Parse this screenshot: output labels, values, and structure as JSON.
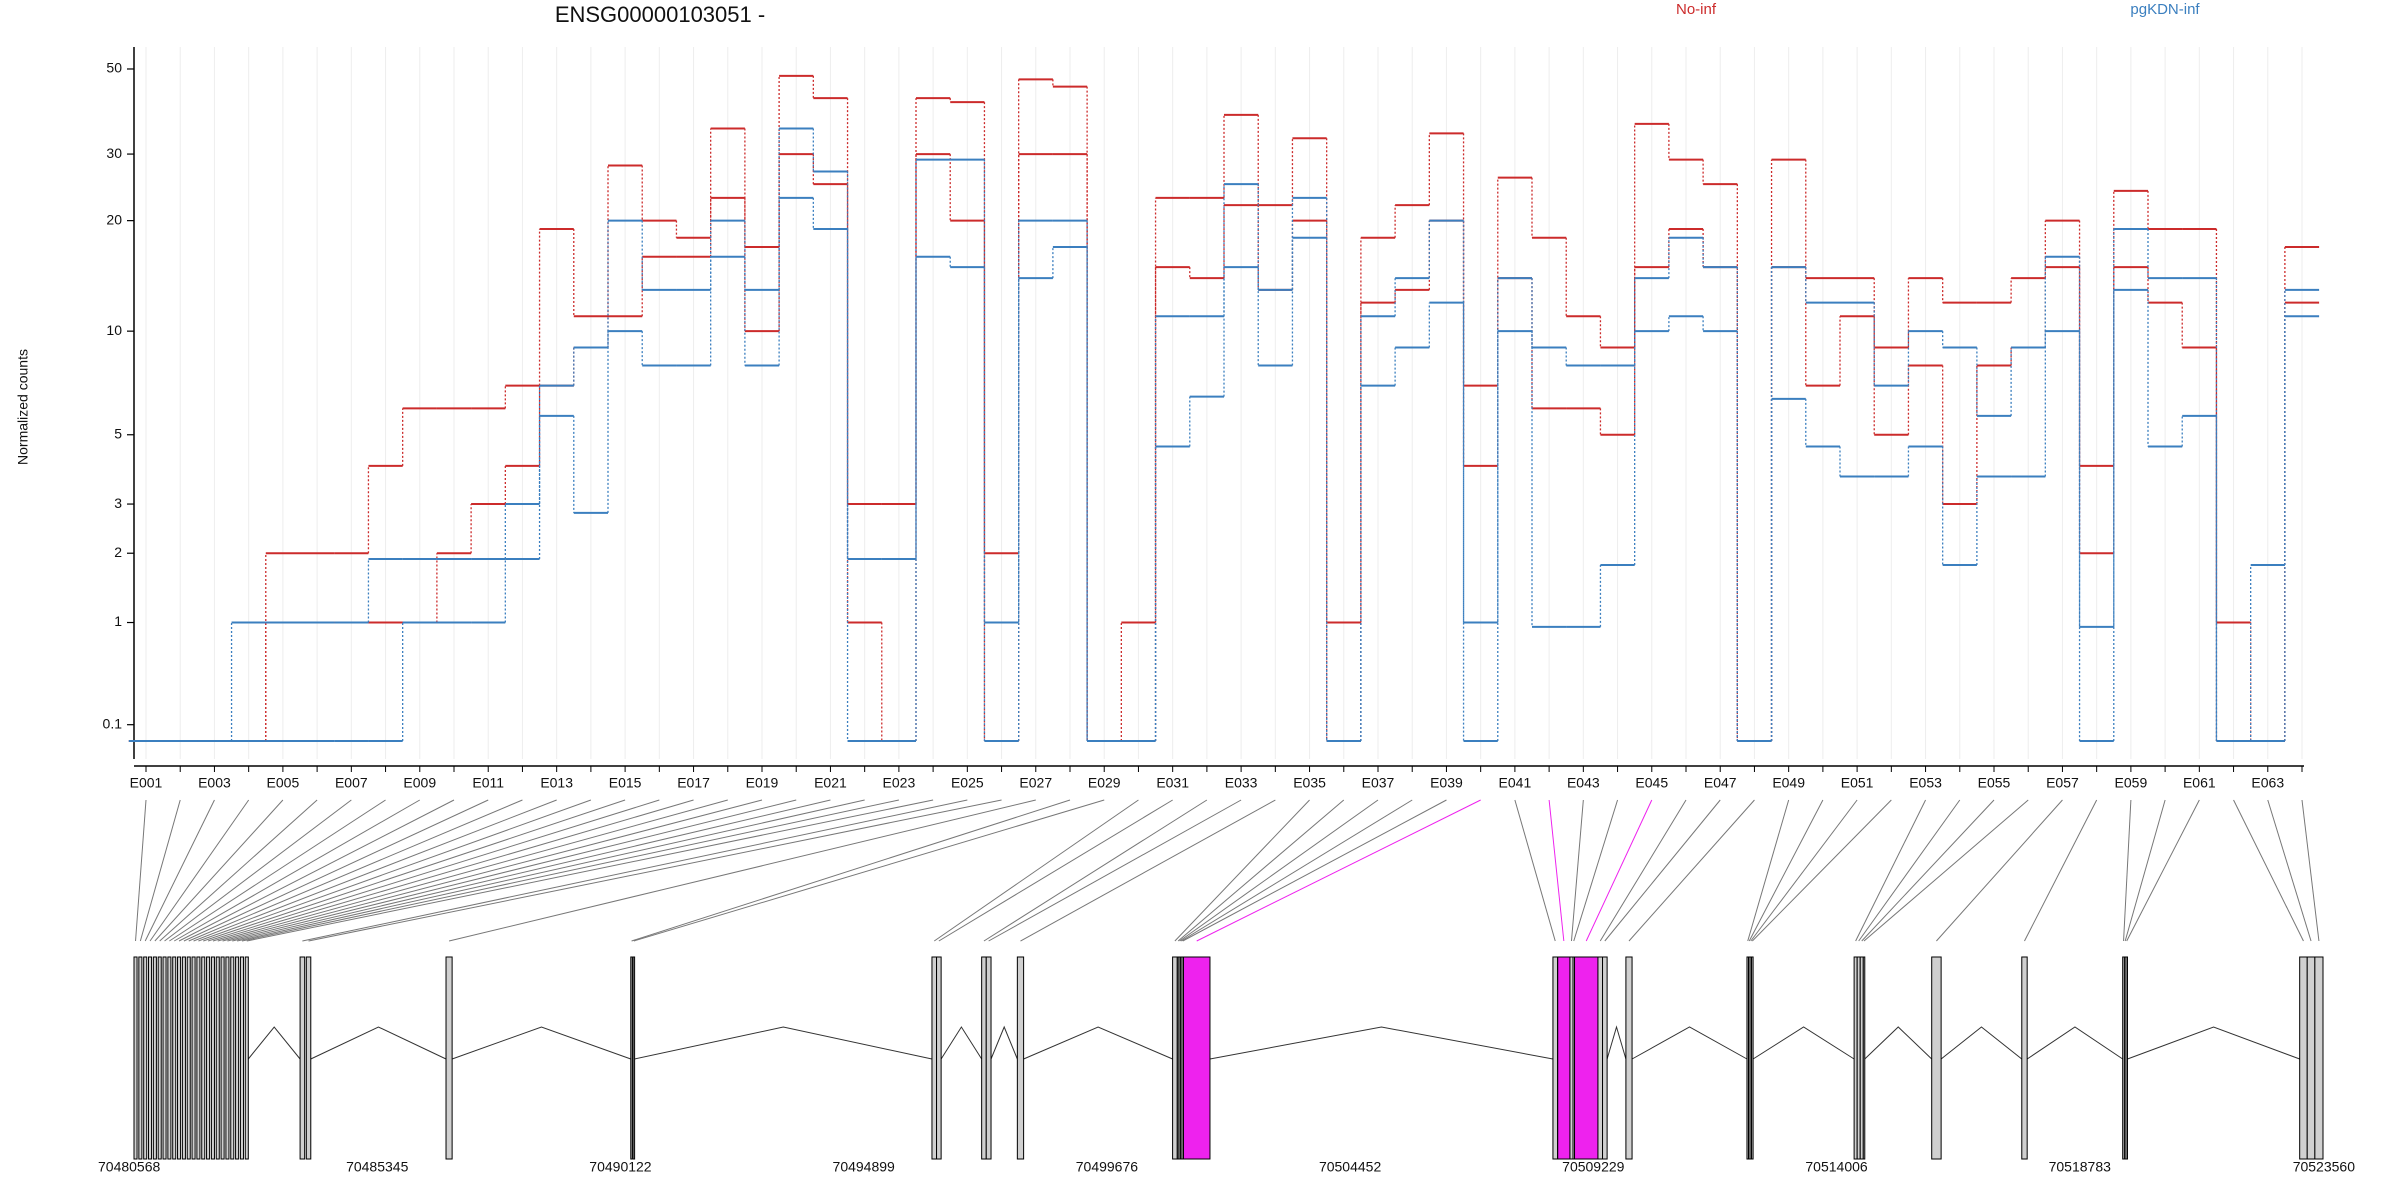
{
  "chart_data": {
    "type": "step",
    "title": "ENSG00000103051 -",
    "y_label": "Normalized counts",
    "yscale": "log1p",
    "ylim": [
      -0.1,
      57
    ],
    "yticks": [
      0.1,
      1,
      2,
      3,
      5,
      10,
      20,
      30,
      50
    ],
    "grid": true,
    "legend": "top-right",
    "categories": [
      "E001",
      null,
      "E003",
      null,
      "E005",
      null,
      "E007",
      null,
      "E009",
      null,
      "E011",
      null,
      "E013",
      null,
      "E015",
      null,
      "E017",
      null,
      "E019",
      null,
      "E021",
      null,
      "E023",
      null,
      "E025",
      null,
      "E027",
      null,
      "E029",
      null,
      "E031",
      null,
      "E033",
      null,
      "E035",
      null,
      "E037",
      null,
      "E039",
      null,
      "E041",
      null,
      "E043",
      null,
      "E045",
      null,
      "E047",
      null,
      "E049",
      null,
      "E051",
      null,
      "E053",
      null,
      "E055",
      null,
      "E057",
      null,
      "E059",
      null,
      "E061",
      null,
      "E063",
      null
    ],
    "series": [
      {
        "name": "No-inf",
        "color": "#cc2b2b",
        "samples": [
          [
            0,
            0,
            0,
            0,
            2,
            2,
            2,
            4,
            6,
            6,
            6,
            7,
            19,
            11,
            28,
            20,
            18,
            35,
            17,
            48,
            42,
            3,
            3,
            42,
            41,
            2,
            47,
            45,
            0,
            1,
            23,
            23,
            38,
            22,
            33,
            1,
            18,
            22,
            34,
            7,
            26,
            18,
            11,
            9,
            36,
            29,
            25,
            0,
            29,
            14,
            14,
            9,
            14,
            12,
            12,
            14,
            20,
            4,
            24,
            19,
            19,
            1,
            0,
            17
          ],
          [
            0,
            0,
            0,
            0,
            1,
            1,
            1,
            1,
            1,
            2,
            3,
            4,
            7,
            9,
            11,
            16,
            16,
            23,
            10,
            30,
            25,
            1,
            0,
            30,
            20,
            0,
            30,
            30,
            0,
            0,
            15,
            14,
            22,
            13,
            20,
            0,
            12,
            13,
            20,
            4,
            14,
            6,
            6,
            5,
            15,
            19,
            15,
            0,
            15,
            7,
            11,
            5,
            8,
            3,
            8,
            9,
            15,
            2,
            15,
            12,
            9,
            0,
            0,
            12
          ]
        ]
      },
      {
        "name": "pgKDN-inf",
        "color": "#3b7fbf",
        "samples": [
          [
            0,
            0,
            0,
            1,
            1,
            1,
            1,
            1.9,
            1.9,
            1.9,
            1.9,
            3,
            7,
            9,
            20,
            13,
            13,
            20,
            13,
            35,
            27,
            1.9,
            1.9,
            29,
            29,
            1,
            20,
            20,
            0,
            0,
            11,
            11,
            25,
            13,
            23,
            0,
            11,
            14,
            20,
            1,
            14,
            9,
            8,
            8,
            14,
            18,
            15,
            0,
            15,
            12,
            12,
            7,
            10,
            9,
            5.7,
            9,
            16,
            0.95,
            19,
            14,
            14,
            0,
            1.8,
            13
          ],
          [
            0,
            0,
            0,
            0,
            0,
            0,
            0,
            0,
            1,
            1,
            1,
            1.9,
            5.7,
            2.8,
            10,
            8,
            8,
            16,
            8,
            23,
            19,
            0,
            0,
            16,
            15,
            0,
            14,
            17,
            0,
            0,
            4.6,
            6.5,
            15,
            8,
            18,
            0,
            7,
            9,
            12,
            0,
            10,
            0.95,
            0.95,
            1.8,
            10,
            11,
            10,
            0,
            6.4,
            4.6,
            3.7,
            3.7,
            4.6,
            1.8,
            3.7,
            3.7,
            10,
            0,
            13,
            4.6,
            5.7,
            0,
            0,
            11
          ]
        ]
      }
    ],
    "gene_model": {
      "xlim": [
        70480568,
        70523560
      ],
      "xticks": [
        70480568,
        70485345,
        70490122,
        70494899,
        70499676,
        70504452,
        70509229,
        70514006,
        70518783,
        70523560
      ],
      "exon_color": "#d0d0d0",
      "highlight_color": "#ee22ee",
      "highlighted_exons": [
        39,
        41,
        44
      ],
      "exons": [
        [
          70480568,
          70480628
        ],
        [
          70480663,
          70480723
        ],
        [
          70480758,
          70480818
        ],
        [
          70480853,
          70480913
        ],
        [
          70480948,
          70481008
        ],
        [
          70481043,
          70481103
        ],
        [
          70481138,
          70481198
        ],
        [
          70481233,
          70481293
        ],
        [
          70481328,
          70481388
        ],
        [
          70481423,
          70481483
        ],
        [
          70481518,
          70481578
        ],
        [
          70481613,
          70481673
        ],
        [
          70481708,
          70481768
        ],
        [
          70481803,
          70481863
        ],
        [
          70481898,
          70481958
        ],
        [
          70481993,
          70482053
        ],
        [
          70482088,
          70482148
        ],
        [
          70482183,
          70482243
        ],
        [
          70482278,
          70482338
        ],
        [
          70482373,
          70482433
        ],
        [
          70482468,
          70482528
        ],
        [
          70482563,
          70482623
        ],
        [
          70482658,
          70482718
        ],
        [
          70482753,
          70482813
        ],
        [
          70483830,
          70483920
        ],
        [
          70483952,
          70484040
        ],
        [
          70486696,
          70486816
        ],
        [
          70490325,
          70490355
        ],
        [
          70490370,
          70490400
        ],
        [
          70496240,
          70496330
        ],
        [
          70496330,
          70496420
        ],
        [
          70497216,
          70497306
        ],
        [
          70497306,
          70497400
        ],
        [
          70497917,
          70498040
        ],
        [
          70500966,
          70501056
        ],
        [
          70501060,
          70501090
        ],
        [
          70501090,
          70501120
        ],
        [
          70501120,
          70501150
        ],
        [
          70501150,
          70501180
        ],
        [
          70501180,
          70501700
        ],
        [
          70508436,
          70508526
        ],
        [
          70508530,
          70508770
        ],
        [
          70508770,
          70508830
        ],
        [
          70508830,
          70508860
        ],
        [
          70508860,
          70509320
        ],
        [
          70509320,
          70509410
        ],
        [
          70509410,
          70509500
        ],
        [
          70509869,
          70509990
        ],
        [
          70512247,
          70512277
        ],
        [
          70512277,
          70512307
        ],
        [
          70512307,
          70512337
        ],
        [
          70512337,
          70512367
        ],
        [
          70514351,
          70514411
        ],
        [
          70514411,
          70514471
        ],
        [
          70514471,
          70514531
        ],
        [
          70514531,
          70514560
        ],
        [
          70515875,
          70516060
        ],
        [
          70517644,
          70517750
        ],
        [
          70519626,
          70519660
        ],
        [
          70519660,
          70519690
        ],
        [
          70519690,
          70519720
        ],
        [
          70523102,
          70523250
        ],
        [
          70523250,
          70523400
        ],
        [
          70523400,
          70523560
        ]
      ]
    }
  }
}
